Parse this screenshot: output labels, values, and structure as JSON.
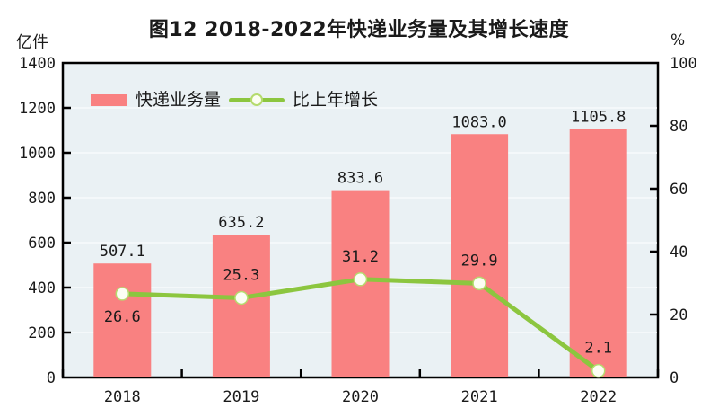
{
  "colors": {
    "bar": "#F98181",
    "line": "#8CC63F",
    "marker_fill": "#FCFEF3",
    "marker_stroke": "#B5DB6E",
    "plot_bg": "#EAF1F4",
    "gridline": "#F7FAFB",
    "axis": "#000000",
    "text": "#1A1A1A"
  },
  "chart_data": {
    "type": "bar",
    "title": "图12  2018-2022年快递业务量及其增长速度",
    "categories": [
      "2018",
      "2019",
      "2020",
      "2021",
      "2022"
    ],
    "series": [
      {
        "name": "快递业务量",
        "type": "bar",
        "axis": "left",
        "values": [
          507.1,
          635.2,
          833.6,
          1083.0,
          1105.8
        ],
        "labels": [
          "507.1",
          "635.2",
          "833.6",
          "1083.0",
          "1105.8"
        ]
      },
      {
        "name": "比上年增长",
        "type": "line",
        "axis": "right",
        "values": [
          26.6,
          25.3,
          31.2,
          29.9,
          2.1
        ],
        "labels": [
          "26.6",
          "25.3",
          "31.2",
          "29.9",
          "2.1"
        ],
        "label_positions": [
          "below",
          "above",
          "above",
          "above",
          "above"
        ]
      }
    ],
    "ylabel_left": "亿件",
    "ylabel_right": "%",
    "ylim_left": [
      0,
      1400
    ],
    "ylim_right": [
      0,
      100
    ],
    "yticks_left": [
      0,
      200,
      400,
      600,
      800,
      1000,
      1200,
      1400
    ],
    "yticks_right": [
      0,
      20,
      40,
      60,
      80,
      100
    ],
    "grid": true,
    "legend_position": "top-left-inside"
  }
}
